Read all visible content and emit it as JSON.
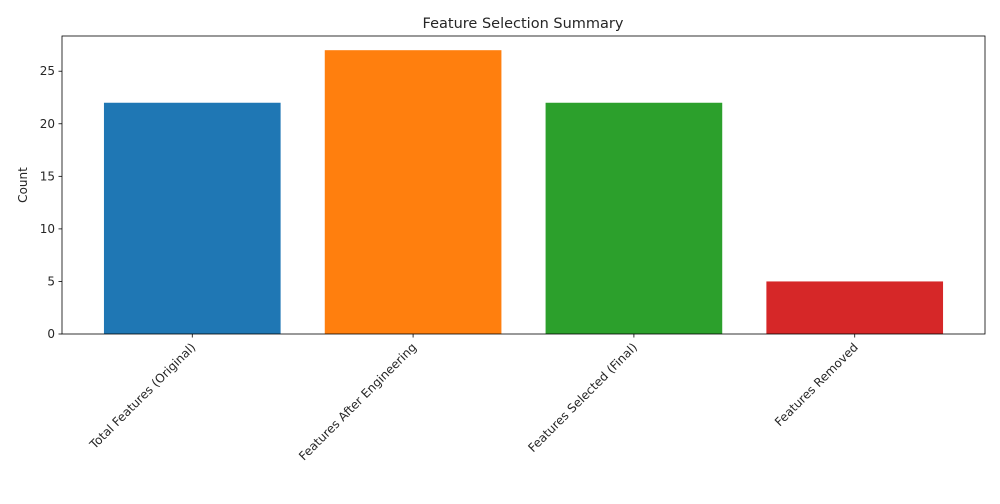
{
  "chart_data": {
    "type": "bar",
    "title": "Feature Selection Summary",
    "xlabel": "",
    "ylabel": "Count",
    "categories": [
      "Total Features (Original)",
      "Features After Engineering",
      "Features Selected (Final)",
      "Features Removed"
    ],
    "values": [
      22,
      27,
      22,
      5
    ],
    "colors": [
      "#1f77b4",
      "#ff7f0e",
      "#2ca02c",
      "#d62728"
    ],
    "ylim": [
      0,
      28.35
    ],
    "yticks": [
      0,
      5,
      10,
      15,
      20,
      25
    ],
    "grid": false,
    "legend": "none"
  }
}
